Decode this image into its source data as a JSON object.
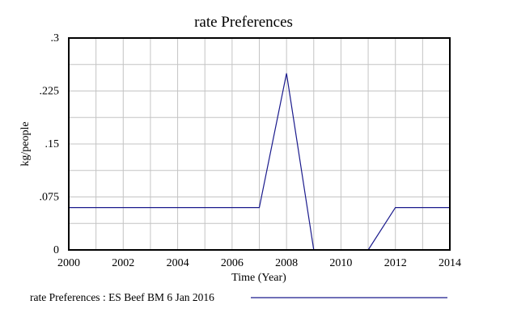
{
  "chart_data": {
    "type": "line",
    "title": "rate Preferences",
    "xlabel": "Time (Year)",
    "ylabel": "kg/people",
    "xlim": [
      2000,
      2014
    ],
    "ylim": [
      0,
      0.3
    ],
    "x_ticks": [
      2000,
      2002,
      2004,
      2006,
      2008,
      2010,
      2012,
      2014
    ],
    "x_tick_labels": [
      "2000",
      "2002",
      "2004",
      "2006",
      "2008",
      "2010",
      "2012",
      "2014"
    ],
    "x_grid_step": 1,
    "y_ticks": [
      0,
      0.075,
      0.15,
      0.225,
      0.3
    ],
    "y_tick_labels": [
      "0",
      ".075",
      ".15",
      ".225",
      ".3"
    ],
    "y_grid_step": 0.0375,
    "grid": true,
    "legend_position": "bottom",
    "series": [
      {
        "name": "rate Preferences : ES Beef BM 6 Jan 2016",
        "color": "#1a1a8c",
        "x": [
          2000,
          2007,
          2008,
          2009,
          2011,
          2012,
          2014
        ],
        "y": [
          0.06,
          0.06,
          0.25,
          0,
          0,
          0.06,
          0.06
        ]
      }
    ]
  }
}
